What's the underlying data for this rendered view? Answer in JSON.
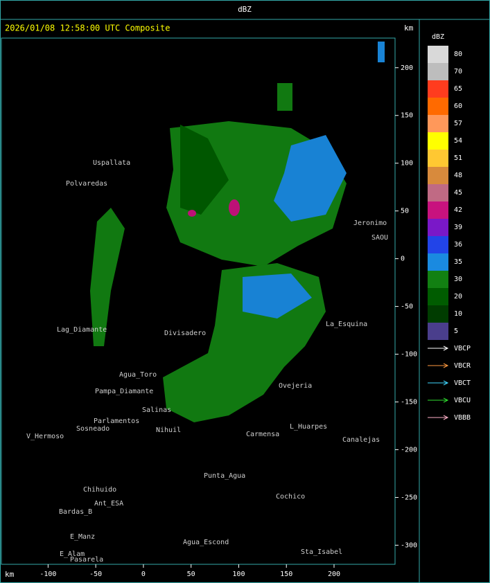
{
  "header": {
    "title": "dBZ"
  },
  "map": {
    "title": "2026/01/08 12:58:00 UTC Composite",
    "x_unit": "km",
    "y_unit": "km",
    "xlim": [
      -149,
      264
    ],
    "ylim": [
      -320,
      231
    ],
    "xticks": [
      -100,
      -50,
      0,
      50,
      100,
      150,
      200
    ],
    "yticks": [
      200,
      150,
      100,
      50,
      0,
      -50,
      -100,
      -150,
      -200,
      -250,
      -300
    ],
    "places": [
      "Uspallata",
      "Polvaredas",
      "Divisadero",
      "Agua_Toro",
      "Pampa_Diamante",
      "Salinas",
      "Nihuil",
      "Sosneado",
      "Parlamentos",
      "V_Hermoso",
      "Punta_Agua",
      "Carmensa",
      "Ovejeria",
      "L_Huarpes",
      "Canalejas",
      "Cochico",
      "Sta_Isabel",
      "Agua_Escond",
      "Chihuido",
      "Bardas_B",
      "E_Manz",
      "E_Alam",
      "Pasarela",
      "Jeronimo",
      "SAOU",
      "Lag_Diamante",
      "La_Esquina",
      "Ant_ESA"
    ]
  },
  "colorbar": {
    "title": "dBZ",
    "levels": [
      {
        "value": 80,
        "color": "#d9d9d9"
      },
      {
        "value": 70,
        "color": "#bdbdbd"
      },
      {
        "value": 65,
        "color": "#ff3c1e"
      },
      {
        "value": 60,
        "color": "#ff6a00"
      },
      {
        "value": 57,
        "color": "#ff985a"
      },
      {
        "value": 54,
        "color": "#ffff00"
      },
      {
        "value": 51,
        "color": "#ffc832"
      },
      {
        "value": 48,
        "color": "#d88a3c"
      },
      {
        "value": 45,
        "color": "#c06a84"
      },
      {
        "value": 42,
        "color": "#c8127e"
      },
      {
        "value": 39,
        "color": "#7a18c8"
      },
      {
        "value": 36,
        "color": "#2244e8"
      },
      {
        "value": 35,
        "color": "#1a8ae0"
      },
      {
        "value": 30,
        "color": "#128012"
      },
      {
        "value": 20,
        "color": "#005c00"
      },
      {
        "value": 10,
        "color": "#003c00"
      },
      {
        "value": 5,
        "color": "#4a3e8c"
      }
    ]
  },
  "legend": [
    {
      "name": "VBCP",
      "color": "#ffffff"
    },
    {
      "name": "VBCR",
      "color": "#ff9a40"
    },
    {
      "name": "VBCT",
      "color": "#40d8ff"
    },
    {
      "name": "VBCU",
      "color": "#30e030"
    },
    {
      "name": "VBBB",
      "color": "#ffb0c8"
    }
  ]
}
